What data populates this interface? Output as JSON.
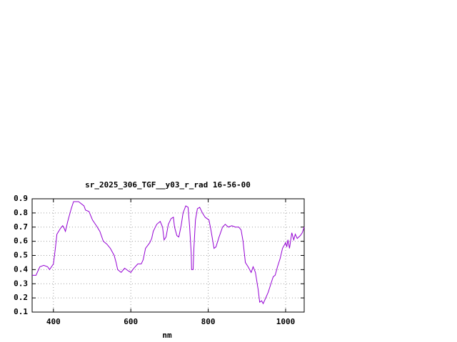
{
  "chart_data": {
    "type": "line",
    "title": "sr_2025_306_TGF__y03_r_rad 16-56-00",
    "x_label": "nm",
    "x": [
      345,
      355,
      365,
      375,
      385,
      390,
      400,
      405,
      409,
      418,
      424,
      428,
      431,
      437,
      446,
      452,
      465,
      479,
      483,
      492,
      501,
      511,
      520,
      529,
      538,
      547,
      557,
      562,
      566,
      575,
      584,
      594,
      600,
      608,
      618,
      627,
      632,
      638,
      649,
      654,
      658,
      667,
      676,
      682,
      686,
      691,
      697,
      704,
      710,
      713,
      719,
      724,
      730,
      735,
      742,
      748,
      752,
      756,
      757,
      761,
      763,
      767,
      772,
      778,
      785,
      792,
      802,
      807,
      815,
      820,
      828,
      837,
      844,
      852,
      861,
      870,
      879,
      885,
      890,
      896,
      903,
      911,
      916,
      922,
      929,
      933,
      938,
      942,
      947,
      955,
      962,
      968,
      973,
      979,
      986,
      992,
      1000,
      1003,
      1006,
      1010,
      1016,
      1021,
      1025,
      1030,
      1038,
      1043,
      1048
    ],
    "series": [
      {
        "color": "#9400d3",
        "values": [
          0.36,
          0.36,
          0.42,
          0.43,
          0.42,
          0.4,
          0.44,
          0.55,
          0.65,
          0.69,
          0.71,
          0.69,
          0.67,
          0.74,
          0.83,
          0.88,
          0.88,
          0.85,
          0.82,
          0.81,
          0.75,
          0.71,
          0.67,
          0.6,
          0.58,
          0.55,
          0.5,
          0.45,
          0.4,
          0.38,
          0.41,
          0.39,
          0.38,
          0.41,
          0.44,
          0.44,
          0.47,
          0.55,
          0.59,
          0.62,
          0.67,
          0.72,
          0.74,
          0.7,
          0.61,
          0.63,
          0.72,
          0.76,
          0.77,
          0.7,
          0.64,
          0.63,
          0.71,
          0.8,
          0.85,
          0.84,
          0.7,
          0.52,
          0.4,
          0.4,
          0.55,
          0.75,
          0.83,
          0.84,
          0.8,
          0.77,
          0.75,
          0.68,
          0.55,
          0.56,
          0.63,
          0.7,
          0.72,
          0.7,
          0.71,
          0.7,
          0.7,
          0.68,
          0.6,
          0.45,
          0.42,
          0.38,
          0.42,
          0.38,
          0.26,
          0.17,
          0.18,
          0.16,
          0.19,
          0.24,
          0.3,
          0.35,
          0.36,
          0.42,
          0.48,
          0.55,
          0.59,
          0.56,
          0.61,
          0.55,
          0.66,
          0.61,
          0.65,
          0.62,
          0.64,
          0.66,
          0.7
        ]
      }
    ],
    "xlim": [
      345,
      1048
    ],
    "ylim": [
      0.1,
      0.9
    ],
    "xticks": [
      400,
      600,
      800,
      1000
    ],
    "yticks": [
      0.1,
      0.2,
      0.3,
      0.4,
      0.5,
      0.6,
      0.7,
      0.8,
      0.9
    ],
    "grid": true
  }
}
